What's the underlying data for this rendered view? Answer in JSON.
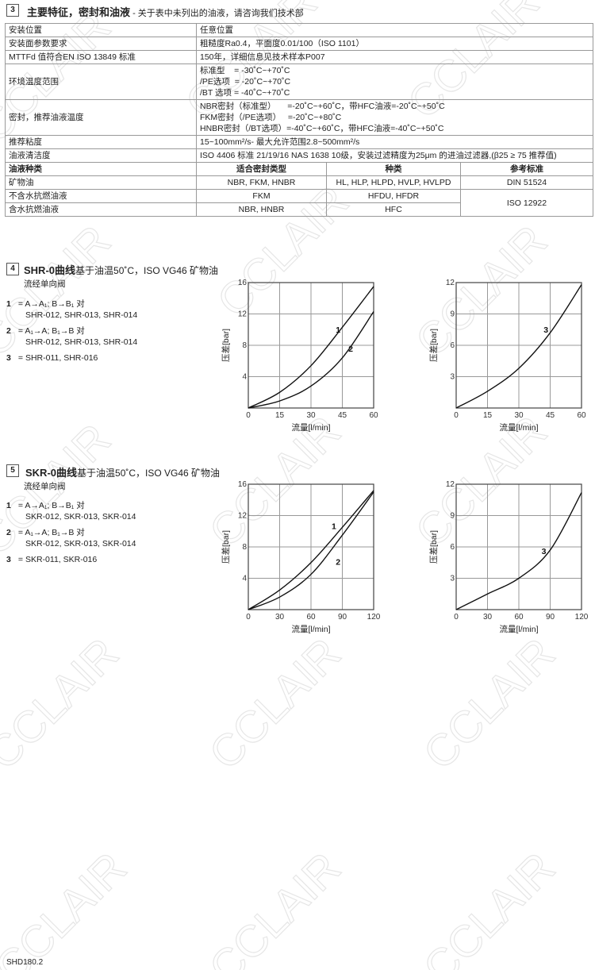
{
  "watermark": "CCLAIR",
  "section3": {
    "number": "3",
    "title": "主要特征，密封和油液",
    "subtitle": " - 关于表中未列出的油液，请咨询我们技术部",
    "rows": [
      {
        "label": "安装位置",
        "value": [
          "任意位置"
        ]
      },
      {
        "label": "安装面参数要求",
        "value": [
          "粗糙度Ra0.4，平面度0.01/100（ISO 1101）"
        ]
      },
      {
        "label": "MTTFd 值符合EN ISO 13849 标准",
        "value": [
          "150年，详细信息见技术样本P007"
        ]
      },
      {
        "label": "环境温度范围",
        "value": [
          "标准型    = -30˚C~+70˚C",
          "/PE选项  = -20˚C~+70˚C",
          "/BT 选项 = -40˚C~+70˚C"
        ]
      },
      {
        "label": "密封，推荐油液温度",
        "value": [
          "NBR密封（标准型）     =-20˚C~+60˚C，带HFC油液=-20˚C~+50˚C",
          "FKM密封（/PE选项）   =-20˚C~+80˚C",
          "HNBR密封（/BT选项）=-40˚C~+60˚C，带HFC油液=-40˚C~+50˚C"
        ]
      },
      {
        "label": "推荐粘度",
        "value": [
          "15~100mm²/s- 最大允许范围2.8~500mm²/s"
        ]
      },
      {
        "label": "油液清洁度",
        "value": [
          "ISO 4406 标准 21/19/16 NAS 1638 10级，安装过滤精度为25μm 的进油过滤器,(β25 ≥ 75 推荐值)"
        ]
      }
    ],
    "fluid_headers": [
      "油液种类",
      "适合密封类型",
      "种类",
      "参考标准"
    ],
    "fluid_rows": [
      {
        "type": "矿物油",
        "seals": "NBR, FKM, HNBR",
        "classes": "HL, HLP, HLPD, HVLP, HVLPD",
        "standard": "DIN 51524"
      },
      {
        "type": "不含水抗燃油液",
        "seals": "FKM",
        "classes": "HFDU, HFDR"
      },
      {
        "type": "含水抗燃油液",
        "seals": "NBR, HNBR",
        "classes": "HFC"
      }
    ],
    "merged_standard": "ISO 12922"
  },
  "section4": {
    "number": "4",
    "title": "SHR-0曲线",
    "subtitle": "基于油温50˚C，ISO VG46 矿物油",
    "caption": "流经单向阀",
    "legend": [
      {
        "n": "1",
        "eq": " = ",
        "line1": "A→A₁; B→B₁ 对",
        "line2": "SHR-012, SHR-013, SHR-014"
      },
      {
        "n": "2",
        "eq": " = ",
        "line1": "A₁→A; B₁→B 对",
        "line2": "SHR-012, SHR-013, SHR-014"
      },
      {
        "n": "3",
        "eq": " = ",
        "line1": "SHR-011, SHR-016"
      }
    ]
  },
  "section5": {
    "number": "5",
    "title": "SKR-0曲线",
    "subtitle": "基于油温50˚C，ISO VG46 矿物油",
    "caption": "流经单向阀",
    "legend": [
      {
        "n": "1",
        "eq": " = ",
        "line1": "A→A₁; B→B₁ 对",
        "line2": "SKR-012, SKR-013, SKR-014"
      },
      {
        "n": "2",
        "eq": " = ",
        "line1": "A₁→A; B₁→B 对",
        "line2": "SKR-012, SKR-013, SKR-014"
      },
      {
        "n": "3",
        "eq": " = ",
        "line1": "SKR-011, SKR-016"
      }
    ]
  },
  "chart_data": [
    {
      "type": "line",
      "xlabel": "流量[l/min]",
      "ylabel": "压差[bar]",
      "xlim": [
        0,
        60
      ],
      "ylim": [
        0,
        16
      ],
      "xticks": [
        0,
        15,
        30,
        45,
        60
      ],
      "yticks": [
        4,
        8,
        12,
        16
      ],
      "grid": true,
      "series": [
        {
          "name": "1",
          "x": [
            0,
            15,
            30,
            45,
            60
          ],
          "y": [
            0,
            2.0,
            5.4,
            10.3,
            15.5
          ]
        },
        {
          "name": "2",
          "x": [
            0,
            15,
            30,
            45,
            60
          ],
          "y": [
            0,
            0.9,
            2.8,
            6.4,
            12.3
          ]
        }
      ]
    },
    {
      "type": "line",
      "xlabel": "流量[l/min]",
      "ylabel": "压差[bar]",
      "xlim": [
        0,
        60
      ],
      "ylim": [
        0,
        12
      ],
      "xticks": [
        0,
        15,
        30,
        45,
        60
      ],
      "yticks": [
        3,
        6,
        9,
        12
      ],
      "grid": true,
      "series": [
        {
          "name": "3",
          "x": [
            0,
            15,
            30,
            45,
            60
          ],
          "y": [
            0,
            1.6,
            3.8,
            7.2,
            11.8
          ]
        }
      ]
    },
    {
      "type": "line",
      "xlabel": "流量[l/min]",
      "ylabel": "压差[bar]",
      "xlim": [
        0,
        120
      ],
      "ylim": [
        0,
        16
      ],
      "xticks": [
        0,
        30,
        60,
        90,
        120
      ],
      "yticks": [
        4,
        8,
        12,
        16
      ],
      "grid": true,
      "series": [
        {
          "name": "1",
          "x": [
            0,
            30,
            60,
            90,
            120
          ],
          "y": [
            0,
            2.5,
            6.0,
            10.5,
            15.2
          ]
        },
        {
          "name": "2",
          "x": [
            0,
            30,
            60,
            90,
            120
          ],
          "y": [
            0,
            1.6,
            4.5,
            9.5,
            15.0
          ]
        }
      ]
    },
    {
      "type": "line",
      "xlabel": "流量[l/min]",
      "ylabel": "压差[bar]",
      "xlim": [
        0,
        120
      ],
      "ylim": [
        0,
        12
      ],
      "xticks": [
        0,
        30,
        60,
        90,
        120
      ],
      "yticks": [
        3,
        6,
        9,
        12
      ],
      "grid": true,
      "series": [
        {
          "name": "3",
          "x": [
            0,
            30,
            60,
            90,
            120
          ],
          "y": [
            0,
            1.5,
            3.0,
            5.7,
            11.2
          ]
        }
      ]
    }
  ],
  "footer": "SHD180.2"
}
